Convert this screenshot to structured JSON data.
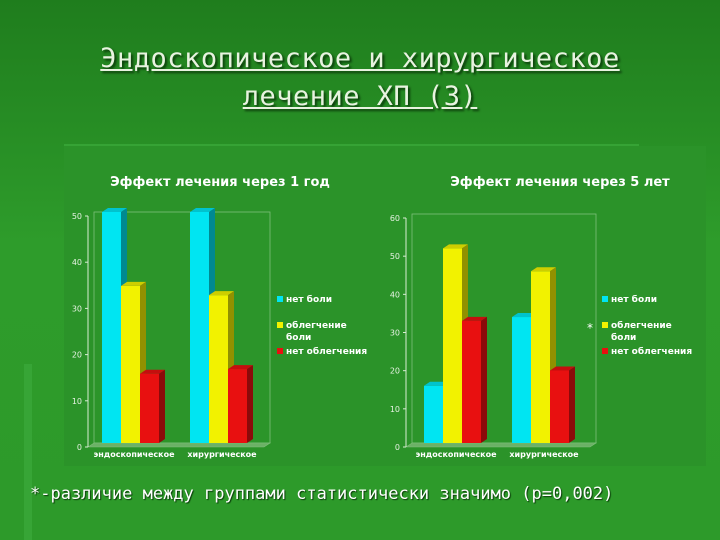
{
  "slide": {
    "title_line1": "Эндоскопическое и хирургическое",
    "title_line2": "лечение ХП (3)",
    "footnote": "*-различие между группами статистически значимо (p=0,002)"
  },
  "colors": {
    "no_pain": "#00e5f2",
    "relief": "#f2f200",
    "no_relief": "#e81010"
  },
  "chart_data": [
    {
      "type": "bar",
      "title": "Эффект лечения через 1 год",
      "categories": [
        "эндоскопическое",
        "хирургическое"
      ],
      "series": [
        {
          "name": "нет боли",
          "values": [
            50,
            50
          ]
        },
        {
          "name": "облегчение боли",
          "values": [
            34,
            32
          ]
        },
        {
          "name": "нет облегчения",
          "values": [
            15,
            16
          ]
        }
      ],
      "ylim": [
        0,
        50
      ],
      "yticks": [
        0,
        10,
        20,
        30,
        40,
        50
      ],
      "annotations": [],
      "grid": false,
      "legend": "right"
    },
    {
      "type": "bar",
      "title": "Эффект лечения через 5 лет",
      "categories": [
        "эндоскопическое",
        "хирургическое"
      ],
      "series": [
        {
          "name": "нет боли",
          "values": [
            15,
            33
          ]
        },
        {
          "name": "облегчение боли",
          "values": [
            51,
            45
          ]
        },
        {
          "name": "нет облегчения",
          "values": [
            32,
            19
          ]
        }
      ],
      "ylim": [
        0,
        60
      ],
      "yticks": [
        0,
        10,
        20,
        30,
        40,
        50,
        60
      ],
      "annotations": [
        "*"
      ],
      "grid": false,
      "legend": "right"
    }
  ]
}
